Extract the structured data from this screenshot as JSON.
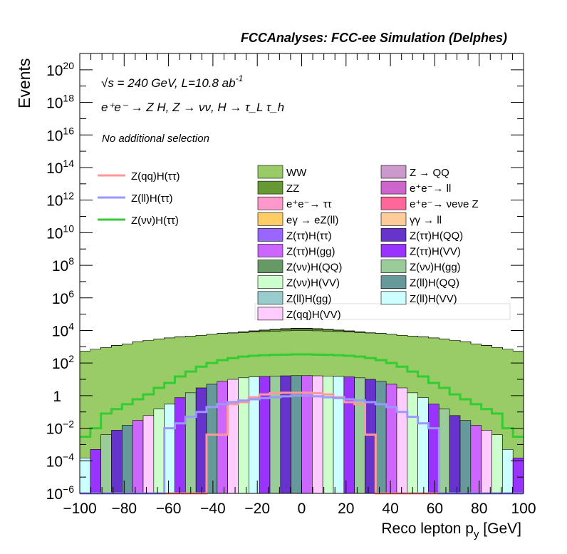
{
  "colors": {
    "WW": "#99cc66",
    "ZZ": "#669933",
    "ee_tautau": "#ff99cc",
    "egamma_eZll": "#ffcc66",
    "Ztt_Htt": "#9966ff",
    "Ztt_Hgg": "#cc66ff",
    "Zvv_HQQ": "#669966",
    "Zvv_HVV": "#ccffcc",
    "Zll_Hgg": "#99cccc",
    "Zqq_HVV": "#ffccff",
    "Z_QQ": "#cc99cc",
    "ee_ll": "#cc66cc",
    "ee_nunuZ": "#ff6699",
    "gammagamma_ll": "#ffcc99",
    "Ztt_HQQ": "#6633cc",
    "Ztt_HVV": "#9933ff",
    "Zvv_Hgg": "#99cc99",
    "Zll_HQQ": "#669999",
    "Zll_HVV": "#ccffff",
    "Zqq_Htt_line": "#ff9999",
    "Zll_Htt_line": "#9999ff",
    "Zvv_Htt_line": "#33cc33"
  },
  "chart_data": {
    "type": "area",
    "title": "FCCAnalyses: FCC-ee Simulation (Delphes)",
    "xlabel": "Reco lepton p",
    "xlabel_sub": "y",
    "xlabel_unit": "[GeV]",
    "ylabel": "Events",
    "xlim": [
      -100,
      100
    ],
    "ylim": [
      1e-06,
      1e+21
    ],
    "yscale": "log",
    "x_ticks": [
      "−100",
      "−80",
      "−60",
      "−40",
      "−20",
      "0",
      "20",
      "40",
      "60",
      "80",
      "100"
    ],
    "y_ticks": [
      {
        "base": "10",
        "exp": "−6"
      },
      {
        "base": "10",
        "exp": "−4"
      },
      {
        "base": "10",
        "exp": "−2"
      },
      {
        "base": "1",
        "exp": ""
      },
      {
        "base": "10",
        "exp": "2"
      },
      {
        "base": "10",
        "exp": "4"
      },
      {
        "base": "10",
        "exp": "6"
      },
      {
        "base": "10",
        "exp": "8"
      },
      {
        "base": "10",
        "exp": "10"
      },
      {
        "base": "10",
        "exp": "12"
      },
      {
        "base": "10",
        "exp": "14"
      },
      {
        "base": "10",
        "exp": "16"
      },
      {
        "base": "10",
        "exp": "18"
      },
      {
        "base": "10",
        "exp": "20"
      }
    ],
    "annotations": {
      "energy": "√s = 240 GeV, L=10.8 ab",
      "energy_sup": "-1",
      "process": "e⁺e⁻ → Z H, Z → νν, H → τ_L τ_h",
      "selection": "No additional selection"
    },
    "stack_edges": [
      {
        "name": "WW",
        "values": [
          550,
          700,
          900,
          1200,
          1500,
          2000,
          2500,
          3000,
          3500,
          4000,
          4500,
          5000,
          5800,
          6500,
          7000,
          7500,
          8000,
          8500,
          9000,
          9500,
          10000,
          10000,
          9500,
          9000,
          8500,
          8000,
          7500,
          7000,
          6500,
          5800,
          5000,
          4500,
          4000,
          3500,
          3000,
          2500,
          2000,
          1500,
          1200,
          900,
          700,
          550
        ]
      },
      {
        "name": "ZZ",
        "values": [
          0.01,
          0.01,
          0.05,
          0.08,
          0.15,
          0.2,
          0.3,
          0.5,
          1,
          3,
          8,
          20,
          30,
          60,
          200,
          600,
          1200,
          1800,
          2200,
          2500,
          2700,
          2700,
          2500,
          2200,
          1800,
          1200,
          600,
          200,
          60,
          30,
          20,
          8,
          3,
          1,
          0.5,
          0.3,
          0.2,
          0.15,
          0.08,
          0.05,
          0.01,
          0.01
        ]
      },
      {
        "name": "e+e- → ττ",
        "values": [
          0,
          0,
          0,
          0,
          0,
          0,
          0,
          0,
          0,
          0,
          0,
          0,
          0,
          0,
          0,
          50,
          150,
          300,
          500,
          650,
          700,
          700,
          650,
          500,
          300,
          150,
          50,
          0,
          0,
          0,
          0,
          0,
          0,
          0,
          0,
          0,
          0,
          0,
          0,
          0,
          0,
          0
        ]
      },
      {
        "name": "eγ → eZ(ll)",
        "values": [
          0,
          0,
          0,
          0,
          0,
          0,
          0,
          0,
          0,
          0,
          0,
          0,
          0,
          0,
          0,
          10,
          30,
          60,
          100,
          120,
          130,
          130,
          120,
          100,
          60,
          30,
          10,
          0,
          0,
          0,
          0,
          0,
          0,
          0,
          0,
          0,
          0,
          0,
          0,
          0,
          0,
          0
        ]
      },
      {
        "name": "e+e- → νeνe Z",
        "values": [
          0,
          0,
          0,
          0,
          0,
          0,
          0,
          0,
          0,
          1,
          3,
          8,
          10,
          12,
          14,
          16,
          18,
          20,
          22,
          24,
          26,
          26,
          24,
          22,
          20,
          18,
          16,
          14,
          12,
          10,
          8,
          3,
          1,
          0,
          0,
          0,
          0,
          0,
          0,
          0,
          0,
          0
        ]
      }
    ],
    "lines": [
      {
        "name": "Z(qq)H(ττ)",
        "values": [
          0,
          0,
          0,
          0,
          0,
          0,
          0,
          0,
          0,
          0,
          0,
          0,
          0.004,
          0.004,
          0.3,
          0.4,
          0.8,
          1.2,
          1.4,
          1.5,
          1.5,
          1.5,
          1.4,
          1.2,
          0.8,
          0.4,
          0.3,
          0.004,
          0,
          0,
          0,
          0,
          0,
          0,
          0,
          0,
          0,
          0,
          0,
          0,
          0,
          0
        ]
      },
      {
        "name": "Z(ll)H(ττ)",
        "values": [
          0,
          0,
          0,
          0,
          0,
          0,
          0,
          0,
          0.01,
          0.02,
          0.05,
          0.1,
          0.2,
          0.3,
          0.4,
          0.5,
          0.6,
          0.7,
          0.8,
          0.9,
          1,
          1,
          0.9,
          0.8,
          0.7,
          0.6,
          0.5,
          0.4,
          0.3,
          0.2,
          0.1,
          0.05,
          0.02,
          0.01,
          0,
          0,
          0,
          0,
          0,
          0,
          0,
          0
        ]
      },
      {
        "name": "Z(νν)H(ττ)",
        "values": [
          0.003,
          0.01,
          0.08,
          0.15,
          0.3,
          0.6,
          1.2,
          3,
          6,
          15,
          30,
          60,
          100,
          150,
          200,
          250,
          280,
          300,
          320,
          330,
          340,
          340,
          330,
          320,
          300,
          280,
          250,
          200,
          150,
          100,
          60,
          30,
          15,
          6,
          3,
          1.2,
          0.6,
          0.3,
          0.15,
          0.08,
          0.01,
          0.003
        ]
      }
    ],
    "legend": {
      "lines": [
        "Z(qq)H(ττ)",
        "Z(ll)H(ττ)",
        "Z(νν)H(ττ)"
      ],
      "left": [
        {
          "label": "WW",
          "color": "#99cc66"
        },
        {
          "label": "ZZ",
          "color": "#669933"
        },
        {
          "label": "e⁺e⁻→ ττ",
          "color": "#ff99cc"
        },
        {
          "label": "eγ → eZ(ll)",
          "color": "#ffcc66"
        },
        {
          "label": "Z(ττ)H(ττ)",
          "color": "#9966ff"
        },
        {
          "label": "Z(ττ)H(gg)",
          "color": "#cc66ff"
        },
        {
          "label": "Z(νν)H(QQ)",
          "color": "#669966"
        },
        {
          "label": "Z(νν)H(VV)",
          "color": "#ccffcc"
        },
        {
          "label": "Z(ll)H(gg)",
          "color": "#99cccc"
        },
        {
          "label": "Z(qq)H(VV)",
          "color": "#ffccff"
        }
      ],
      "right": [
        {
          "label": "Z → QQ",
          "color": "#cc99cc"
        },
        {
          "label": "e⁺e⁻→ ll",
          "color": "#cc66cc"
        },
        {
          "label": "e⁺e⁻→ νeνe Z",
          "color": "#ff6699"
        },
        {
          "label": "γγ → ll",
          "color": "#ffcc99"
        },
        {
          "label": "Z(ττ)H(QQ)",
          "color": "#6633cc"
        },
        {
          "label": "Z(ττ)H(VV)",
          "color": "#9933ff"
        },
        {
          "label": "Z(νν)H(gg)",
          "color": "#99cc99"
        },
        {
          "label": "Z(ll)H(QQ)",
          "color": "#669999"
        },
        {
          "label": "Z(ll)H(VV)",
          "color": "#ccffff"
        }
      ]
    }
  }
}
